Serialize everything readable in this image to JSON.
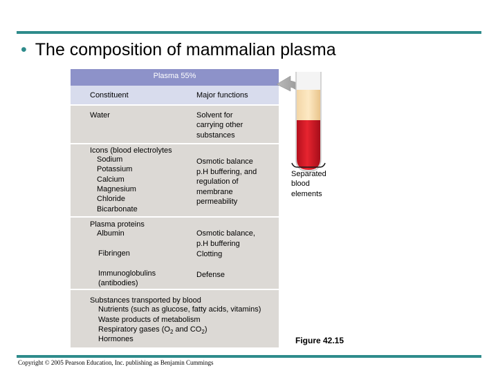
{
  "title": "The composition of mammalian plasma",
  "plasma_header": "Plasma 55%",
  "columns": {
    "constituent": "Constituent",
    "functions": "Major functions"
  },
  "water": {
    "constituent": "Water",
    "functions": [
      "Solvent for",
      "carrying other",
      "substances"
    ]
  },
  "ions": {
    "constituent": [
      "Icons (blood electrolytes",
      "Sodium",
      "Potassium",
      "Calcium",
      "Magnesium",
      "Chloride",
      "Bicarbonate"
    ],
    "functions": [
      "Osmotic balance",
      "p.H buffering, and",
      "regulation of",
      "membrane",
      "permeability"
    ]
  },
  "proteins": {
    "heading": "Plasma proteins",
    "albumin": "Albumin",
    "albumin_functions": [
      "Osmotic balance,",
      "p.H buffering"
    ],
    "fibringen": "Fibringen",
    "fibringen_function": "Clotting",
    "immuno": [
      "Immunoglobulins",
      "(antibodies)"
    ],
    "immuno_function": "Defense"
  },
  "transported": {
    "heading": "Substances transported by blood",
    "items": [
      "Nutrients (such as glucose, fatty acids, vitamins)",
      "Waste products of metabolism"
    ],
    "gases": {
      "prefix": "Respiratory gases (O",
      "sub1": "2",
      "mid": " and CO",
      "sub2": "2",
      "suffix": ")"
    },
    "hormones": "Hormones"
  },
  "separated_label": [
    "Separated",
    "blood",
    "elements"
  ],
  "figure_label": "Figure 42.15",
  "copyright": "Copyright © 2005 Pearson Education, Inc. publishing as Benjamin Cummings",
  "colors": {
    "accent": "#2e8b8b",
    "plasma_header": "#8d92c9",
    "column_header": "#d8dced",
    "band": "#dcd9d5",
    "blood": "#d81c2c"
  }
}
